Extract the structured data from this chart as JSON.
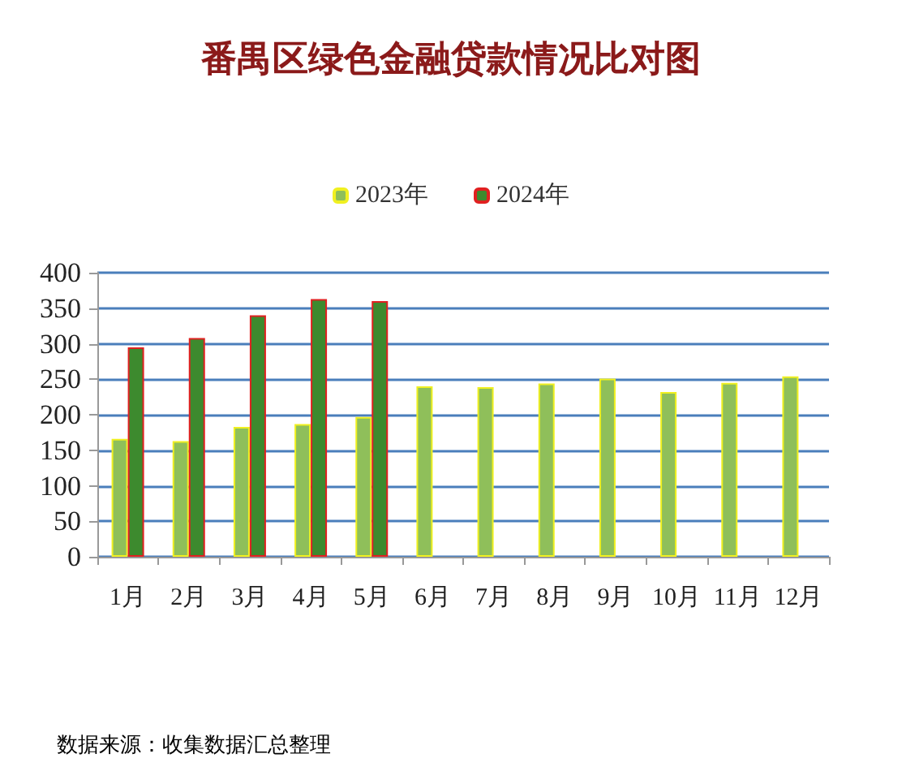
{
  "chart_data": {
    "type": "bar",
    "title": "番禺区绿色金融贷款情况比对图",
    "categories": [
      "1月",
      "2月",
      "3月",
      "4月",
      "5月",
      "6月",
      "7月",
      "8月",
      "9月",
      "10月",
      "11月",
      "12月"
    ],
    "series": [
      {
        "name": "2023年",
        "color": "#8fbf5a",
        "values": [
          166,
          163,
          183,
          187,
          197,
          240,
          239,
          244,
          251,
          232,
          245,
          254
        ]
      },
      {
        "name": "2024年",
        "color": "#3d8a2e",
        "values": [
          295,
          308,
          340,
          363,
          360,
          null,
          null,
          null,
          null,
          null,
          null,
          null
        ]
      }
    ],
    "ylim": [
      0,
      400
    ],
    "yticks": [
      0,
      50,
      100,
      150,
      200,
      250,
      300,
      350,
      400
    ],
    "grid": "y",
    "legend": "top",
    "annotations": [
      "数据来源：收集数据汇总整理"
    ]
  }
}
